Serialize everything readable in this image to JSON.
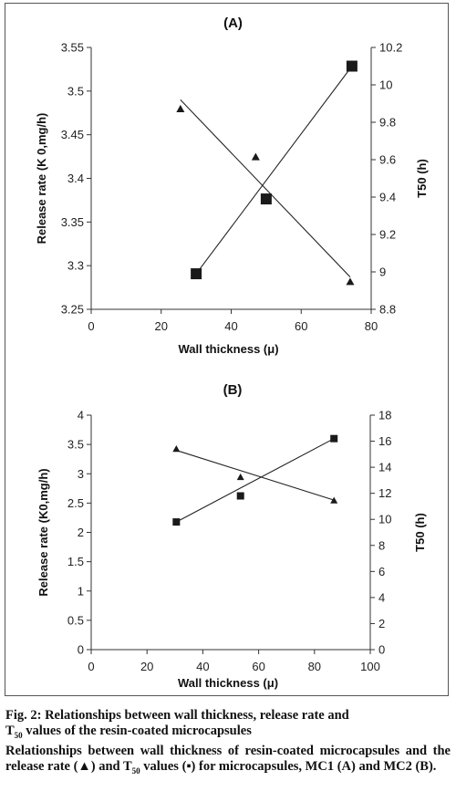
{
  "chart_data": [
    {
      "type": "scatter",
      "title": "(A)",
      "xlabel": "Wall thickness (μ)",
      "ylabel_left": "Release rate (K 0,mg/h)",
      "ylabel_right": "T50 (h)",
      "xlim": [
        0,
        80
      ],
      "ylim_left": [
        3.25,
        3.55
      ],
      "ylim_right": [
        8.8,
        10.2
      ],
      "x_ticks": [
        "0",
        "20",
        "40",
        "60",
        "80"
      ],
      "y_left_ticks": [
        "3.25",
        "3.3",
        "3.35",
        "3.4",
        "3.45",
        "3.5",
        "3.55"
      ],
      "y_right_ticks": [
        "8.8",
        "9",
        "9.2",
        "9.4",
        "9.6",
        "9.8",
        "10",
        "10.2"
      ],
      "series": [
        {
          "marker": "triangle",
          "axis": "left",
          "points": [
            [
              25.5,
              3.48
            ],
            [
              47,
              3.425
            ],
            [
              74,
              3.282
            ]
          ],
          "trendline": [
            [
              25.5,
              3.49
            ],
            [
              74,
              3.287
            ]
          ]
        },
        {
          "marker": "square",
          "axis": "right",
          "points": [
            [
              30,
              8.99
            ],
            [
              50,
              9.39
            ],
            [
              74.5,
              10.1
            ]
          ],
          "trendline": [
            [
              30,
              8.99
            ],
            [
              74.5,
              10.1
            ]
          ]
        }
      ]
    },
    {
      "type": "scatter",
      "title": "(B)",
      "xlabel": "Wall thickness (μ)",
      "ylabel_left": "Release rate (K0,mg/h)",
      "ylabel_right": "T50 (h)",
      "xlim": [
        0,
        100
      ],
      "ylim_left": [
        0,
        4
      ],
      "ylim_right": [
        0,
        18
      ],
      "x_ticks": [
        "0",
        "20",
        "40",
        "60",
        "80",
        "100"
      ],
      "y_left_ticks": [
        "0",
        "0.5",
        "1",
        "1.5",
        "2",
        "2.5",
        "3",
        "3.5",
        "4"
      ],
      "y_right_ticks": [
        "0",
        "2",
        "4",
        "6",
        "8",
        "10",
        "12",
        "14",
        "16",
        "18"
      ],
      "series": [
        {
          "marker": "triangle",
          "axis": "left",
          "points": [
            [
              30.5,
              3.43
            ],
            [
              53.5,
              2.95
            ],
            [
              87,
              2.55
            ]
          ],
          "trendline": [
            [
              30.5,
              3.4
            ],
            [
              87,
              2.55
            ]
          ]
        },
        {
          "marker": "square",
          "axis": "right",
          "points": [
            [
              30.5,
              9.8
            ],
            [
              53.5,
              11.8
            ],
            [
              87,
              16.2
            ]
          ],
          "trendline": [
            [
              30.5,
              9.8
            ],
            [
              87,
              16.2
            ]
          ]
        }
      ]
    }
  ],
  "caption": {
    "line1": "Fig. 2: Relationships between wall thickness, release rate and",
    "line2_pre": "T",
    "line2_sub": "50",
    "line2_post": " values of the resin-coated microcapsules",
    "para2_a": "Relationships between wall thickness of resin-coated microcapsules and the release rate (▲) and T",
    "para2_sub": "50",
    "para2_b": " values (▪) for microcapsules, MC1 (A) and MC2 (B)."
  }
}
